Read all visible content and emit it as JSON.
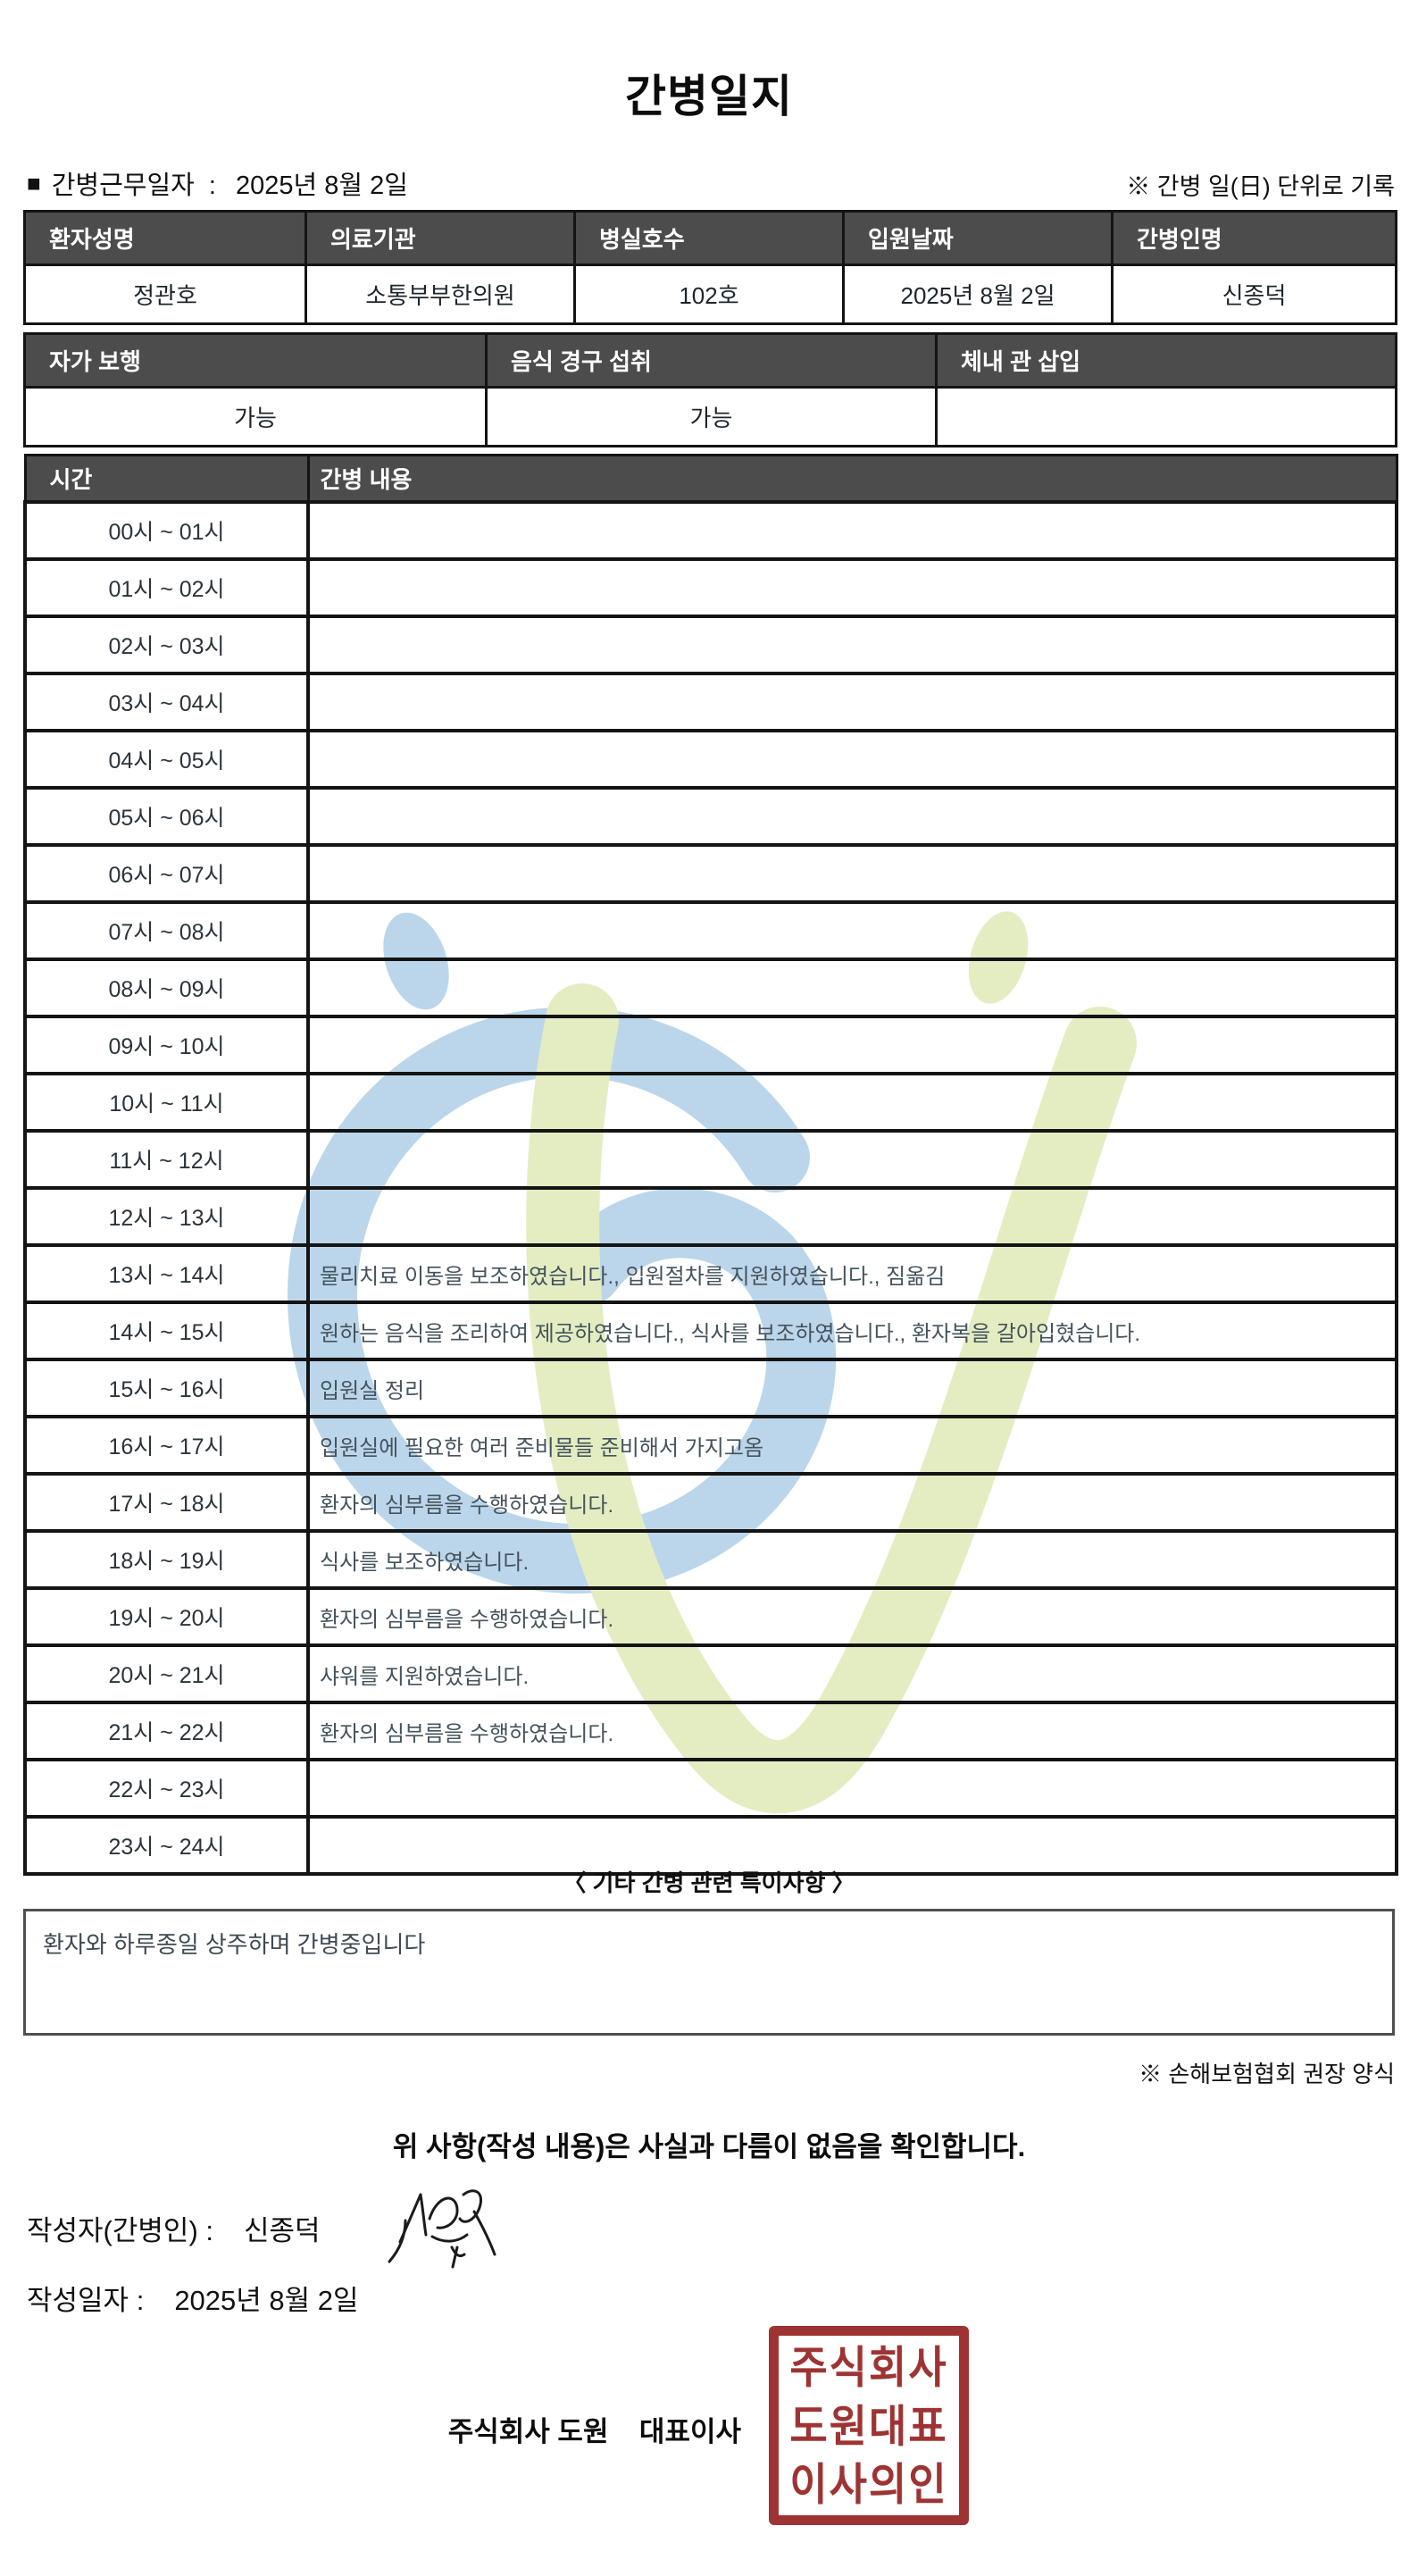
{
  "title": "간병일지",
  "meta": {
    "bullet": "■",
    "work_date_label": "간병근무일자  :",
    "work_date_value": "2025년 8월 2일",
    "unit_note": "※ 간병 일(日) 단위로 기록"
  },
  "info_table": {
    "headers": [
      "환자성명",
      "의료기관",
      "병실호수",
      "입원날짜",
      "간병인명"
    ],
    "values": [
      "정관호",
      "소통부부한의원",
      "102호",
      "2025년 8월 2일",
      "신종덕"
    ]
  },
  "status_table": {
    "headers": [
      "자가 보행",
      "음식 경구 섭취",
      "체내 관 삽입"
    ],
    "values": [
      "가능",
      "가능",
      ""
    ]
  },
  "care_log": {
    "time_header": "시간",
    "content_header": "간병 내용",
    "rows": [
      {
        "time": "00시 ~ 01시",
        "content": ""
      },
      {
        "time": "01시 ~ 02시",
        "content": ""
      },
      {
        "time": "02시 ~ 03시",
        "content": ""
      },
      {
        "time": "03시 ~ 04시",
        "content": ""
      },
      {
        "time": "04시 ~ 05시",
        "content": ""
      },
      {
        "time": "05시 ~ 06시",
        "content": ""
      },
      {
        "time": "06시 ~ 07시",
        "content": ""
      },
      {
        "time": "07시 ~ 08시",
        "content": ""
      },
      {
        "time": "08시 ~ 09시",
        "content": ""
      },
      {
        "time": "09시 ~ 10시",
        "content": ""
      },
      {
        "time": "10시 ~ 11시",
        "content": ""
      },
      {
        "time": "11시 ~ 12시",
        "content": ""
      },
      {
        "time": "12시 ~ 13시",
        "content": ""
      },
      {
        "time": "13시 ~ 14시",
        "content": "물리치료 이동을 보조하였습니다., 입원절차를 지원하였습니다., 짐옮김"
      },
      {
        "time": "14시 ~ 15시",
        "content": "원하는 음식을 조리하여 제공하였습니다., 식사를 보조하였습니다., 환자복을 갈아입혔습니다."
      },
      {
        "time": "15시 ~ 16시",
        "content": "입원실 정리"
      },
      {
        "time": "16시 ~ 17시",
        "content": "입원실에 필요한 여러 준비물들 준비해서 가지고옴"
      },
      {
        "time": "17시 ~ 18시",
        "content": "환자의 심부름을 수행하였습니다."
      },
      {
        "time": "18시 ~ 19시",
        "content": "식사를 보조하였습니다."
      },
      {
        "time": "19시 ~ 20시",
        "content": "환자의 심부름을 수행하였습니다."
      },
      {
        "time": "20시 ~ 21시",
        "content": "샤워를 지원하였습니다."
      },
      {
        "time": "21시 ~ 22시",
        "content": "환자의 심부름을 수행하였습니다."
      },
      {
        "time": "22시 ~ 23시",
        "content": ""
      },
      {
        "time": "23시 ~ 24시",
        "content": ""
      }
    ]
  },
  "remarks": {
    "title": "〈 기타 간병 관련 특이사항 〉",
    "content": "환자와 하루종일 상주하며 간병중입니다",
    "form_note": "※ 손해보험협회 권장 양식"
  },
  "confirmation": {
    "statement": "위 사항(작성 내용)은 사실과 다름이 없음을 확인합니다.",
    "writer_label": "작성자(간병인) :",
    "writer_name": "신종덕",
    "date_label": "작성일자 :",
    "date_value": "2025년 8월 2일",
    "company": "주식회사 도원    대표이사",
    "stamp_lines": [
      "주식회사",
      "도원대표",
      "이사의인"
    ]
  },
  "colors": {
    "header_bg": "#4c4c4c",
    "table_border": "#141414",
    "stamp_red": "#9d3433",
    "watermark_blue": "#b5d3ea",
    "watermark_green": "#e2ecbd",
    "content_text": "#44535d"
  }
}
